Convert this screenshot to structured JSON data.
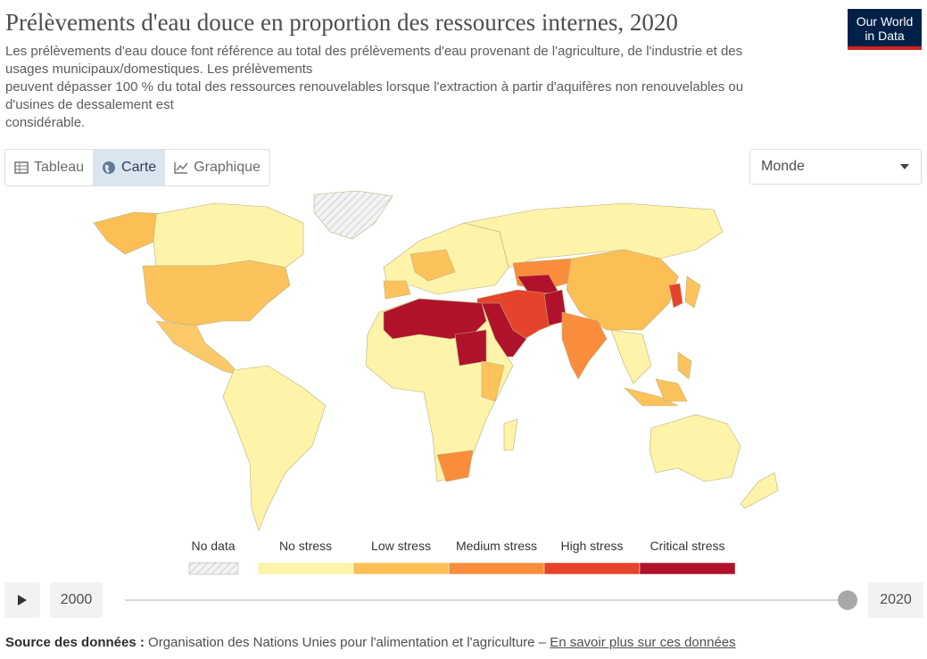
{
  "header": {
    "title": "Prélèvements d'eau douce en proportion des ressources internes, 2020",
    "subtitle": [
      "Les prélèvements d'eau douce font référence au total des prélèvements d'eau provenant de l'agriculture, de l'industrie et des",
      "usages municipaux/domestiques. Les prélèvements",
      "peuvent dépasser 100 % du total des ressources renouvelables lorsque l'extraction à partir d'aquifères non renouvelables ou",
      "d'usines de dessalement est",
      "considérable."
    ],
    "logo": [
      "Our World",
      "in Data"
    ]
  },
  "tabs": [
    "Tableau",
    "Carte",
    "Graphique"
  ],
  "region": "Monde",
  "legend": {
    "no_data": "No data",
    "items": [
      {
        "label": "No stress",
        "color": "#fdf3a9"
      },
      {
        "label": "Low stress",
        "color": "#fcbf55"
      },
      {
        "label": "Medium stress",
        "color": "#f98d3b"
      },
      {
        "label": "High stress",
        "color": "#e5432b"
      },
      {
        "label": "Critical stress",
        "color": "#b0112b"
      }
    ]
  },
  "timeline": {
    "start": 2000,
    "end": 2020
  },
  "source": {
    "label": "Source des données :",
    "text": "Organisation des Nations Unies pour l'alimentation et l'agriculture – ",
    "link": "En savoir plus sur ces données"
  }
}
